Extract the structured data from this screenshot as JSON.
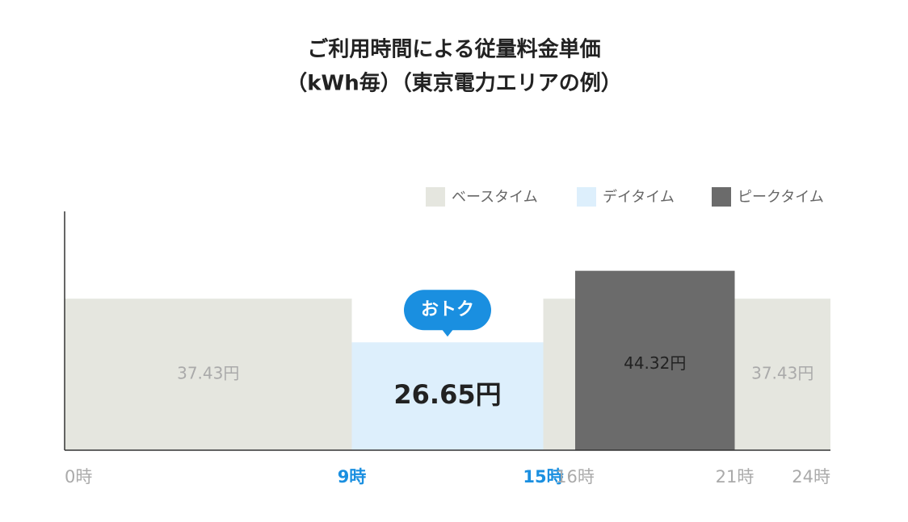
{
  "chart_data": {
    "type": "range-bar",
    "title_lines": [
      "ご利用時間による従量料金単価",
      "（kWh毎）（東京電力エリアの例）"
    ],
    "xlim": [
      0,
      24
    ],
    "xticks": [
      {
        "value": 0,
        "label": "0時"
      },
      {
        "value": 9,
        "label": "9時"
      },
      {
        "value": 15,
        "label": "15時"
      },
      {
        "value": 16,
        "label": "16時"
      },
      {
        "value": 21,
        "label": "21時"
      },
      {
        "value": 24,
        "label": "24時"
      }
    ],
    "highlight_xticks": [
      9,
      15
    ],
    "highlight_color": "#1a8fe0",
    "ylim": [
      0,
      59
    ],
    "legend": "top-right",
    "series": [
      {
        "name": "ベースタイム",
        "color": "#e5e6df",
        "label_color": "#aaaaaa",
        "ranges": [
          [
            0,
            9
          ],
          [
            15,
            24
          ]
        ],
        "values": [
          37.43,
          37.43
        ],
        "value_labels": [
          "37.43円",
          "37.43円"
        ]
      },
      {
        "name": "デイタイム",
        "color": "#ddeffc",
        "label_color": "#222222",
        "ranges": [
          [
            9,
            15
          ]
        ],
        "values": [
          26.65
        ],
        "value_labels": [
          "26.65円"
        ],
        "annotation": "おトク"
      },
      {
        "name": "ピークタイム",
        "color": "#6b6b6b",
        "label_color": "#222222",
        "ranges": [
          [
            16,
            21
          ]
        ],
        "values": [
          44.32
        ],
        "value_labels": [
          "44.32円"
        ]
      }
    ]
  }
}
